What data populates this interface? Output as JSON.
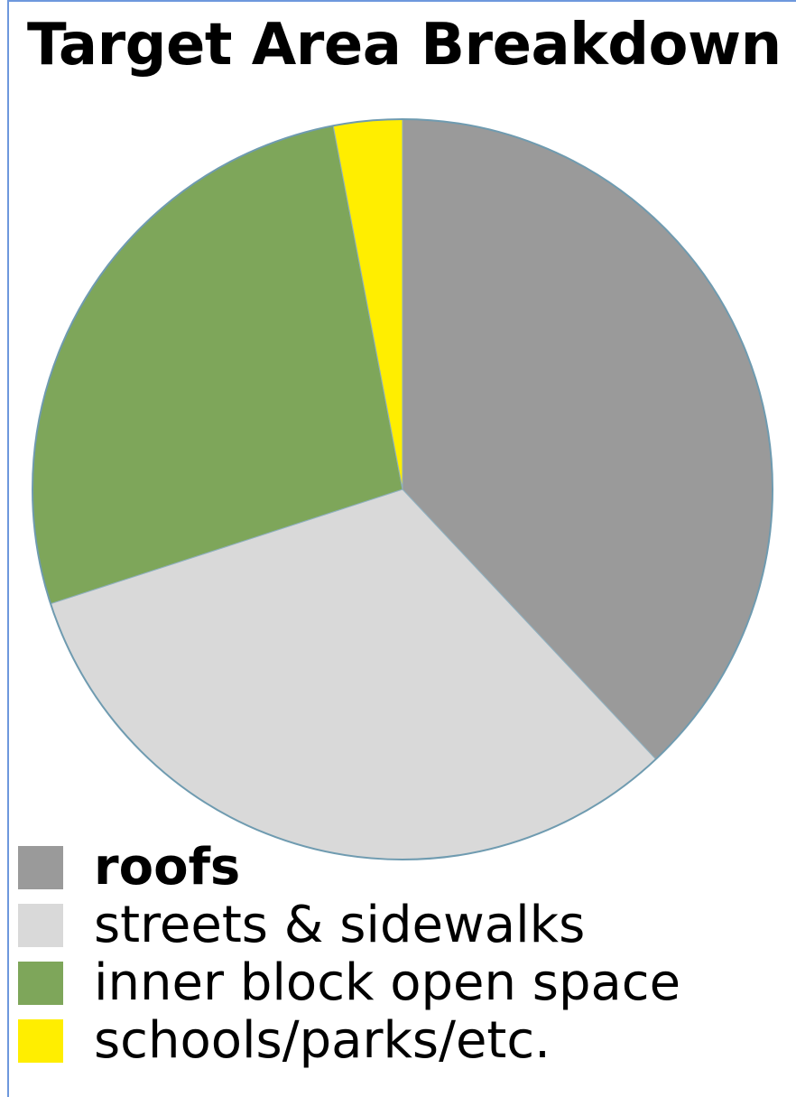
{
  "chart_data": {
    "type": "pie",
    "title": "Target Area Breakdown",
    "start_angle_deg": 0,
    "direction": "clockwise",
    "slices": [
      {
        "label": "roofs",
        "value": 38,
        "color": "#9a9a9a",
        "emphasis": "bold"
      },
      {
        "label": "streets & sidewalks",
        "value": 32,
        "color": "#d9d9d9"
      },
      {
        "label": "inner block open space",
        "value": 27,
        "color": "#7ea65a"
      },
      {
        "label": "schools/parks/etc.",
        "value": 3,
        "color": "#ffee00"
      }
    ],
    "legend": {
      "position": "bottom-left"
    }
  }
}
